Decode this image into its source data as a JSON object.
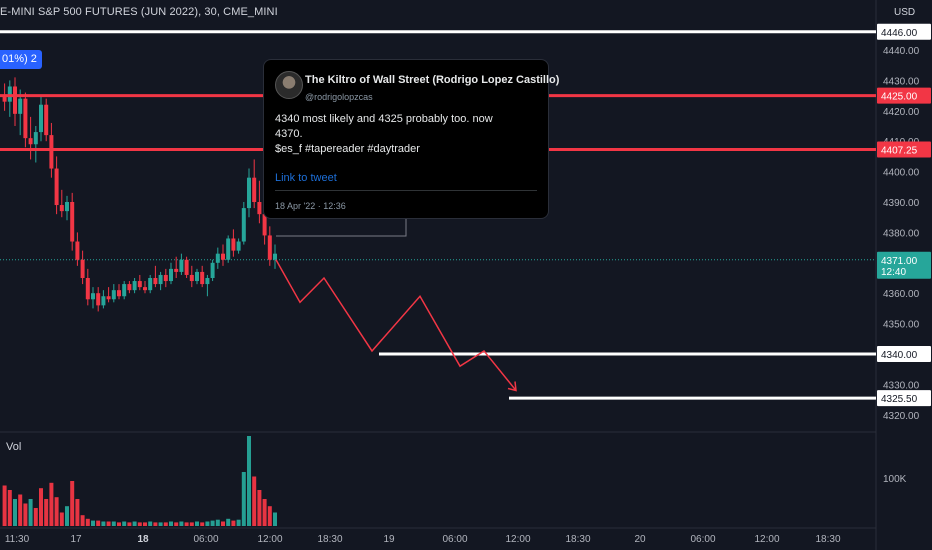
{
  "header": {
    "symbol_title": "E-MINI S&P 500 FUTURES (JUN 2022), 30, CME_MINI",
    "change_badge": "01%) 2",
    "currency": "USD"
  },
  "colors": {
    "background": "#131722",
    "up": "#26a69a",
    "down": "#f23645",
    "level_red": "#f23645",
    "level_white": "#ffffff",
    "projection": "#f23645"
  },
  "chart_data": {
    "type": "candlestick",
    "y_axis": {
      "ticks": [
        4440,
        4430,
        4420,
        4410,
        4400,
        4390,
        4380,
        4370,
        4360,
        4350,
        4340,
        4330,
        4320
      ],
      "range": [
        4316,
        4450
      ]
    },
    "x_axis": {
      "ticks": [
        "11:30",
        "17",
        "18",
        "06:00",
        "12:00",
        "18:30",
        "19",
        "06:00",
        "12:00",
        "18:30",
        "20",
        "06:00",
        "12:00",
        "18:30"
      ],
      "bold_ticks": [
        "18"
      ]
    },
    "last_price": {
      "value": 4371.0,
      "label": "4371.00",
      "countdown": "12:40"
    },
    "levels": [
      {
        "label": "4446.00",
        "value": 4446,
        "color": "white",
        "from": "start"
      },
      {
        "label": "4425.00",
        "value": 4425,
        "color": "red",
        "from": "start"
      },
      {
        "label": "4407.25",
        "value": 4407.25,
        "color": "red",
        "from": "start"
      },
      {
        "label": "4340.00",
        "value": 4340,
        "color": "white",
        "from": "06:00 Apr 19"
      },
      {
        "label": "4325.50",
        "value": 4325.5,
        "color": "white",
        "from": "12:00 Apr 19"
      }
    ],
    "candles": [
      {
        "o": 4425,
        "h": 4429,
        "l": 4420,
        "c": 4423
      },
      {
        "o": 4423,
        "h": 4430,
        "l": 4418,
        "c": 4428
      },
      {
        "o": 4428,
        "h": 4431,
        "l": 4415,
        "c": 4419
      },
      {
        "o": 4419,
        "h": 4427,
        "l": 4412,
        "c": 4424
      },
      {
        "o": 4424,
        "h": 4426,
        "l": 4408,
        "c": 4411
      },
      {
        "o": 4411,
        "h": 4418,
        "l": 4404,
        "c": 4409
      },
      {
        "o": 4409,
        "h": 4415,
        "l": 4403,
        "c": 4413
      },
      {
        "o": 4413,
        "h": 4425,
        "l": 4410,
        "c": 4422
      },
      {
        "o": 4422,
        "h": 4424,
        "l": 4410,
        "c": 4412
      },
      {
        "o": 4412,
        "h": 4416,
        "l": 4398,
        "c": 4401
      },
      {
        "o": 4401,
        "h": 4405,
        "l": 4386,
        "c": 4389
      },
      {
        "o": 4389,
        "h": 4394,
        "l": 4385,
        "c": 4387
      },
      {
        "o": 4387,
        "h": 4392,
        "l": 4384,
        "c": 4390
      },
      {
        "o": 4390,
        "h": 4393,
        "l": 4374,
        "c": 4377
      },
      {
        "o": 4377,
        "h": 4380,
        "l": 4369,
        "c": 4371
      },
      {
        "o": 4371,
        "h": 4374,
        "l": 4363,
        "c": 4365
      },
      {
        "o": 4365,
        "h": 4368,
        "l": 4356,
        "c": 4358
      },
      {
        "o": 4358,
        "h": 4362,
        "l": 4355,
        "c": 4360
      },
      {
        "o": 4360,
        "h": 4362,
        "l": 4354,
        "c": 4356
      },
      {
        "o": 4356,
        "h": 4361,
        "l": 4355,
        "c": 4359
      },
      {
        "o": 4359,
        "h": 4362,
        "l": 4357,
        "c": 4358
      },
      {
        "o": 4358,
        "h": 4363,
        "l": 4357,
        "c": 4361
      },
      {
        "o": 4361,
        "h": 4363,
        "l": 4358,
        "c": 4359
      },
      {
        "o": 4359,
        "h": 4364,
        "l": 4358,
        "c": 4363
      },
      {
        "o": 4363,
        "h": 4364,
        "l": 4360,
        "c": 4361
      },
      {
        "o": 4361,
        "h": 4365,
        "l": 4360,
        "c": 4364
      },
      {
        "o": 4364,
        "h": 4366,
        "l": 4361,
        "c": 4362
      },
      {
        "o": 4362,
        "h": 4364,
        "l": 4360,
        "c": 4361
      },
      {
        "o": 4361,
        "h": 4366,
        "l": 4360,
        "c": 4365
      },
      {
        "o": 4365,
        "h": 4369,
        "l": 4362,
        "c": 4363
      },
      {
        "o": 4363,
        "h": 4367,
        "l": 4361,
        "c": 4366
      },
      {
        "o": 4366,
        "h": 4368,
        "l": 4362,
        "c": 4364
      },
      {
        "o": 4364,
        "h": 4370,
        "l": 4363,
        "c": 4368
      },
      {
        "o": 4368,
        "h": 4372,
        "l": 4365,
        "c": 4367
      },
      {
        "o": 4367,
        "h": 4373,
        "l": 4366,
        "c": 4371
      },
      {
        "o": 4371,
        "h": 4372,
        "l": 4365,
        "c": 4366
      },
      {
        "o": 4366,
        "h": 4369,
        "l": 4362,
        "c": 4364
      },
      {
        "o": 4364,
        "h": 4368,
        "l": 4363,
        "c": 4367
      },
      {
        "o": 4367,
        "h": 4369,
        "l": 4362,
        "c": 4363
      },
      {
        "o": 4363,
        "h": 4366,
        "l": 4359,
        "c": 4365
      },
      {
        "o": 4365,
        "h": 4371,
        "l": 4364,
        "c": 4370
      },
      {
        "o": 4370,
        "h": 4375,
        "l": 4368,
        "c": 4373
      },
      {
        "o": 4373,
        "h": 4376,
        "l": 4369,
        "c": 4371
      },
      {
        "o": 4371,
        "h": 4379,
        "l": 4370,
        "c": 4378
      },
      {
        "o": 4378,
        "h": 4381,
        "l": 4372,
        "c": 4374
      },
      {
        "o": 4374,
        "h": 4378,
        "l": 4373,
        "c": 4377
      },
      {
        "o": 4377,
        "h": 4390,
        "l": 4376,
        "c": 4388
      },
      {
        "o": 4388,
        "h": 4401,
        "l": 4385,
        "c": 4398
      },
      {
        "o": 4398,
        "h": 4404,
        "l": 4388,
        "c": 4390
      },
      {
        "o": 4390,
        "h": 4397,
        "l": 4383,
        "c": 4386
      },
      {
        "o": 4386,
        "h": 4390,
        "l": 4376,
        "c": 4379
      },
      {
        "o": 4379,
        "h": 4382,
        "l": 4369,
        "c": 4371
      },
      {
        "o": 4371,
        "h": 4376,
        "l": 4368,
        "c": 4373
      }
    ],
    "volume": {
      "label": "Vol",
      "axis_label": "100K",
      "bars": [
        {
          "v": 0.45,
          "up": false
        },
        {
          "v": 0.4,
          "up": false
        },
        {
          "v": 0.3,
          "up": true
        },
        {
          "v": 0.35,
          "up": false
        },
        {
          "v": 0.25,
          "up": false
        },
        {
          "v": 0.3,
          "up": true
        },
        {
          "v": 0.2,
          "up": false
        },
        {
          "v": 0.42,
          "up": false
        },
        {
          "v": 0.3,
          "up": false
        },
        {
          "v": 0.48,
          "up": false
        },
        {
          "v": 0.32,
          "up": false
        },
        {
          "v": 0.15,
          "up": false
        },
        {
          "v": 0.22,
          "up": true
        },
        {
          "v": 0.5,
          "up": false
        },
        {
          "v": 0.3,
          "up": false
        },
        {
          "v": 0.12,
          "up": false
        },
        {
          "v": 0.08,
          "up": false
        },
        {
          "v": 0.06,
          "up": true
        },
        {
          "v": 0.06,
          "up": false
        },
        {
          "v": 0.05,
          "up": true
        },
        {
          "v": 0.05,
          "up": false
        },
        {
          "v": 0.05,
          "up": true
        },
        {
          "v": 0.04,
          "up": false
        },
        {
          "v": 0.05,
          "up": true
        },
        {
          "v": 0.04,
          "up": false
        },
        {
          "v": 0.05,
          "up": true
        },
        {
          "v": 0.04,
          "up": false
        },
        {
          "v": 0.04,
          "up": false
        },
        {
          "v": 0.05,
          "up": true
        },
        {
          "v": 0.04,
          "up": false
        },
        {
          "v": 0.04,
          "up": true
        },
        {
          "v": 0.04,
          "up": false
        },
        {
          "v": 0.05,
          "up": true
        },
        {
          "v": 0.04,
          "up": false
        },
        {
          "v": 0.05,
          "up": true
        },
        {
          "v": 0.04,
          "up": false
        },
        {
          "v": 0.04,
          "up": false
        },
        {
          "v": 0.05,
          "up": true
        },
        {
          "v": 0.04,
          "up": false
        },
        {
          "v": 0.05,
          "up": true
        },
        {
          "v": 0.06,
          "up": true
        },
        {
          "v": 0.07,
          "up": true
        },
        {
          "v": 0.05,
          "up": false
        },
        {
          "v": 0.08,
          "up": true
        },
        {
          "v": 0.06,
          "up": false
        },
        {
          "v": 0.07,
          "up": true
        },
        {
          "v": 0.6,
          "up": true
        },
        {
          "v": 1.0,
          "up": true
        },
        {
          "v": 0.55,
          "up": false
        },
        {
          "v": 0.4,
          "up": false
        },
        {
          "v": 0.3,
          "up": false
        },
        {
          "v": 0.22,
          "up": false
        },
        {
          "v": 0.15,
          "up": true
        }
      ]
    },
    "projection_path": [
      {
        "t": 0,
        "p": 4371
      },
      {
        "t": 1.5,
        "p": 4357
      },
      {
        "t": 3,
        "p": 4365
      },
      {
        "t": 6,
        "p": 4341
      },
      {
        "t": 9,
        "p": 4359
      },
      {
        "t": 11.5,
        "p": 4336
      },
      {
        "t": 13,
        "p": 4341
      },
      {
        "t": 15,
        "p": 4328
      }
    ]
  },
  "tweet": {
    "author_name": "The Kiltro of Wall Street (Rodrigo Lopez Castillo)",
    "handle": "@rodrigolopzcas",
    "text": "4340 most likely and 4325 probably too. now\n4370.\n$es_f #tapereader #daytrader",
    "link_label": "Link to tweet",
    "date": "18 Apr '22 · 12:36"
  }
}
